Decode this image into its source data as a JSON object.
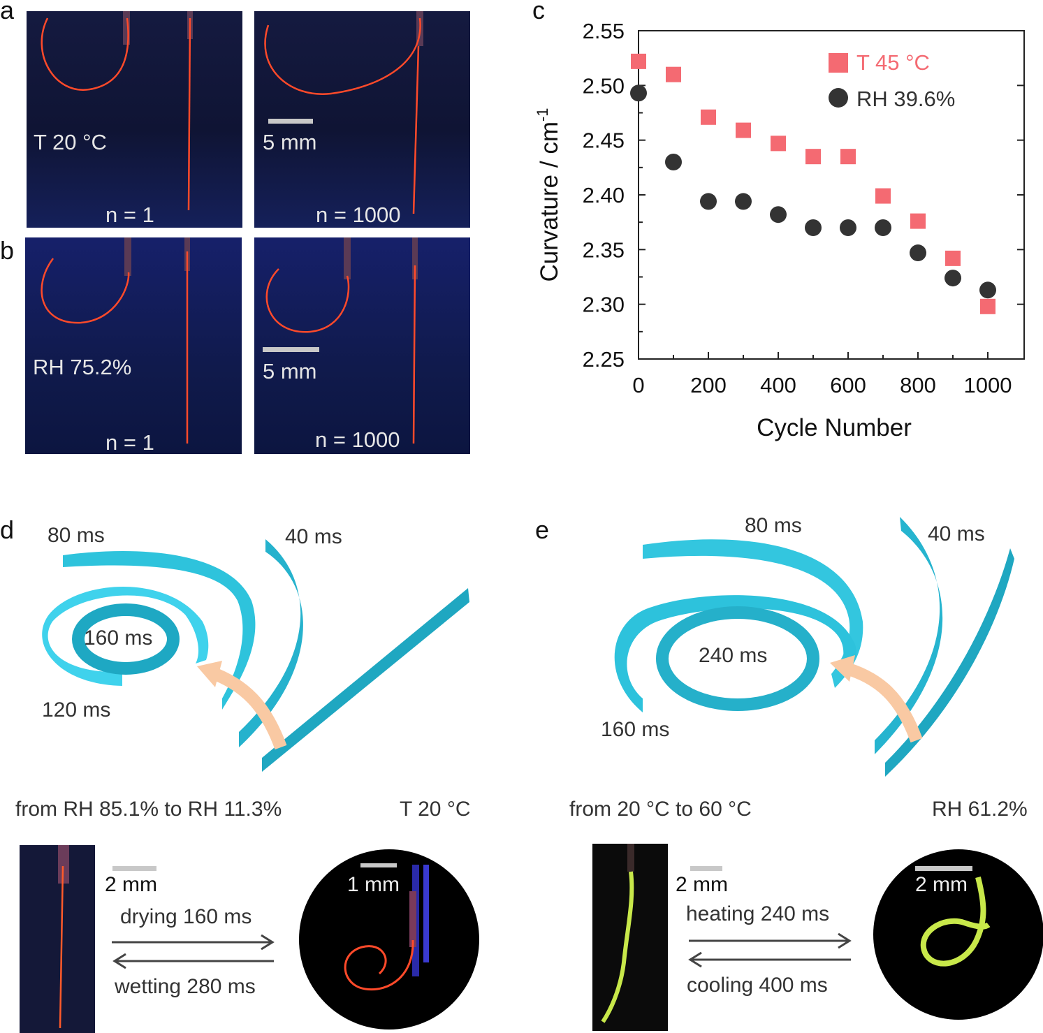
{
  "panels": {
    "a": {
      "letter": "a",
      "left_label": "T 20 °C",
      "scale": "5 mm",
      "n_left": "n = 1",
      "n_right": "n = 1000"
    },
    "b": {
      "letter": "b",
      "left_label": "RH 75.2%",
      "scale": "5 mm",
      "n_left": "n = 1",
      "n_right": "n = 1000"
    },
    "c": {
      "letter": "c"
    },
    "d": {
      "letter": "d",
      "times": [
        "80 ms",
        "40 ms",
        "160 ms",
        "120 ms"
      ],
      "condition_left": "from RH 85.1% to RH 11.3%",
      "condition_right": "T 20 °C",
      "scale_left": "2 mm",
      "scale_right": "1 mm",
      "forward": "drying  160 ms",
      "backward": "wetting  280 ms"
    },
    "e": {
      "letter": "e",
      "times": [
        "80 ms",
        "40 ms",
        "240 ms",
        "160 ms"
      ],
      "condition_left": "from 20 °C to 60 °C",
      "condition_right": "RH 61.2%",
      "scale_left": "2 mm",
      "scale_right": "2 mm",
      "forward": "heating  240 ms",
      "backward": "cooling  400 ms"
    }
  },
  "colors": {
    "temp": "#f46a72",
    "rh": "#333333",
    "ribbon": "#2ec3dc",
    "ribbon_dark": "#1a8ea6",
    "arrow": "#f9c9a3"
  },
  "chart_data": {
    "type": "scatter",
    "xlabel": "Cycle Number",
    "ylabel_main": "Curvature / cm",
    "ylabel_sup": "-1",
    "xlim": [
      0,
      1000
    ],
    "ylim": [
      2.25,
      2.55
    ],
    "xticks": [
      0,
      200,
      400,
      600,
      800,
      1000
    ],
    "yticks": [
      "2.25",
      "2.30",
      "2.35",
      "2.40",
      "2.45",
      "2.50",
      "2.55"
    ],
    "series": [
      {
        "name": "T 45 °C",
        "marker": "square",
        "x": [
          0,
          100,
          200,
          300,
          400,
          500,
          600,
          700,
          800,
          900,
          1000
        ],
        "y": [
          2.522,
          2.51,
          2.471,
          2.459,
          2.447,
          2.435,
          2.435,
          2.399,
          2.376,
          2.342,
          2.298
        ]
      },
      {
        "name": "RH 39.6%",
        "marker": "circle",
        "x": [
          0,
          100,
          200,
          300,
          400,
          500,
          600,
          700,
          800,
          900,
          1000
        ],
        "y": [
          2.493,
          2.43,
          2.394,
          2.394,
          2.382,
          2.37,
          2.37,
          2.37,
          2.347,
          2.324,
          2.313
        ]
      }
    ]
  }
}
